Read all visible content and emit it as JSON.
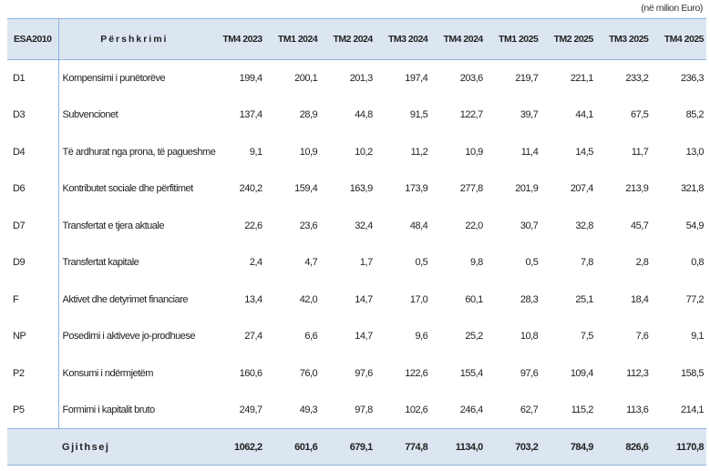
{
  "unit_note": "(në milion Euro)",
  "headers": {
    "code": "ESA2010",
    "description": "Përshkrimi",
    "periods": [
      "TM4 2023",
      "TM1 2024",
      "TM2 2024",
      "TM3 2024",
      "TM4 2024",
      "TM1 2025",
      "TM2 2025",
      "TM3 2025",
      "TM4 2025"
    ]
  },
  "rows": [
    {
      "code": "D1",
      "description": "Kompensimi i punëtorëve",
      "values": [
        "199,4",
        "200,1",
        "201,3",
        "197,4",
        "203,6",
        "219,7",
        "221,1",
        "233,2",
        "236,3"
      ]
    },
    {
      "code": "D3",
      "description": "Subvencionet",
      "values": [
        "137,4",
        "28,9",
        "44,8",
        "91,5",
        "122,7",
        "39,7",
        "44,1",
        "67,5",
        "85,2"
      ]
    },
    {
      "code": "D4",
      "description": "Të ardhurat nga prona, të pagueshme",
      "values": [
        "9,1",
        "10,9",
        "10,2",
        "11,2",
        "10,9",
        "11,4",
        "14,5",
        "11,7",
        "13,0"
      ]
    },
    {
      "code": "D6",
      "description": "Kontributet sociale dhe përfitimet",
      "values": [
        "240,2",
        "159,4",
        "163,9",
        "173,9",
        "277,8",
        "201,9",
        "207,4",
        "213,9",
        "321,8"
      ]
    },
    {
      "code": "D7",
      "description": "Transfertat e tjera aktuale",
      "values": [
        "22,6",
        "23,6",
        "32,4",
        "48,4",
        "22,0",
        "30,7",
        "32,8",
        "45,7",
        "54,9"
      ]
    },
    {
      "code": "D9",
      "description": "Transfertat kapitale",
      "values": [
        "2,4",
        "4,7",
        "1,7",
        "0,5",
        "9,8",
        "0,5",
        "7,8",
        "2,8",
        "0,8"
      ]
    },
    {
      "code": "F",
      "description": "Aktivet dhe detyrimet financiare",
      "values": [
        "13,4",
        "42,0",
        "14,7",
        "17,0",
        "60,1",
        "28,3",
        "25,1",
        "18,4",
        "77,2"
      ]
    },
    {
      "code": "NP",
      "description": "Posedimi i aktiveve jo-prodhuese",
      "values": [
        "27,4",
        "6,6",
        "14,7",
        "9,6",
        "25,2",
        "10,8",
        "7,5",
        "7,6",
        "9,1"
      ]
    },
    {
      "code": "P2",
      "description": "Konsumi i ndërmjetëm",
      "values": [
        "160,6",
        "76,0",
        "97,6",
        "122,6",
        "155,4",
        "97,6",
        "109,4",
        "112,3",
        "158,5"
      ]
    },
    {
      "code": "P5",
      "description": "Formimi i kapitalit bruto",
      "values": [
        "249,7",
        "49,3",
        "97,8",
        "102,6",
        "246,4",
        "62,7",
        "115,2",
        "113,6",
        "214,1"
      ]
    }
  ],
  "total": {
    "label": "Gjithsej",
    "values": [
      "1062,2",
      "601,6",
      "679,1",
      "774,8",
      "1134,0",
      "703,2",
      "784,9",
      "826,6",
      "1170,8"
    ]
  }
}
